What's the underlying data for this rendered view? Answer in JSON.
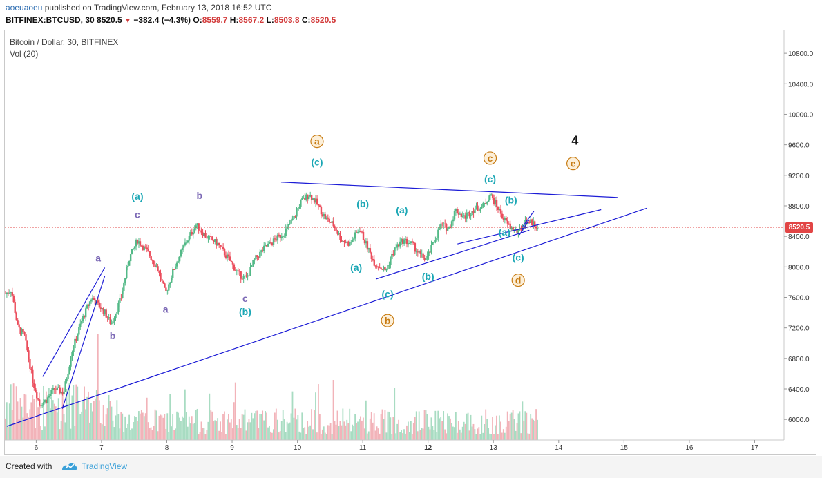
{
  "header": {
    "author": "aoeuaoeu",
    "published": " published on TradingView.com, February 13, 2018 16:52 UTC",
    "symbol": "BITFINEX:BTCUSD, 30",
    "last": "8520.5",
    "change": "−382.4 (−4.3%)",
    "open_label": "O:",
    "open": "8559.7",
    "high_label": "H:",
    "high": "8567.2",
    "low_label": "L:",
    "low": "8503.8",
    "close_label": "C:",
    "close": "8520.5"
  },
  "legend": {
    "title": "Bitcoin / Dollar, 30, BITFINEX",
    "volume": "Vol (20)"
  },
  "price_tag": "8520.5",
  "footer": {
    "created": "Created with",
    "brand": "TradingView"
  },
  "colors": {
    "up": "#53b987",
    "down": "#eb4d5c",
    "trendline": "#1c1cd6",
    "cyan": "#1ba7b5",
    "orange": "#c77b12",
    "purple": "#7b68b5",
    "price_line": "#e24545"
  },
  "chart_data": {
    "type": "candlestick",
    "x_ticks": [
      "6",
      "7",
      "8",
      "9",
      "10",
      "11",
      "12",
      "13",
      "14",
      "15",
      "16",
      "17"
    ],
    "y_ticks": [
      6000,
      6400,
      6800,
      7200,
      7600,
      8000,
      8400,
      8800,
      9200,
      9600,
      10000,
      10400,
      10800
    ],
    "y_tick_labels": [
      "6000.0",
      "6400.0",
      "6800.0",
      "7200.0",
      "7600.0",
      "8000.0",
      "8400.0",
      "8800.0",
      "9200.0",
      "9600.0",
      "10000.0",
      "10400.0",
      "10800.0"
    ],
    "ylim": [
      5730,
      11100
    ],
    "xlim": [
      5.52,
      17.45
    ],
    "last_price": 8520.5,
    "price_path": [
      [
        5.53,
        7650
      ],
      [
        5.62,
        7700
      ],
      [
        5.72,
        7200
      ],
      [
        5.82,
        7100
      ],
      [
        5.95,
        6500
      ],
      [
        6.05,
        6200
      ],
      [
        6.15,
        6250
      ],
      [
        6.28,
        6400
      ],
      [
        6.42,
        6350
      ],
      [
        6.55,
        6900
      ],
      [
        6.7,
        7300
      ],
      [
        6.85,
        7600
      ],
      [
        6.95,
        7500
      ],
      [
        7.05,
        7400
      ],
      [
        7.15,
        7250
      ],
      [
        7.3,
        7600
      ],
      [
        7.42,
        8100
      ],
      [
        7.55,
        8350
      ],
      [
        7.7,
        8200
      ],
      [
        7.85,
        8000
      ],
      [
        7.98,
        7650
      ],
      [
        8.12,
        8000
      ],
      [
        8.28,
        8300
      ],
      [
        8.45,
        8550
      ],
      [
        8.6,
        8400
      ],
      [
        8.78,
        8300
      ],
      [
        8.95,
        8100
      ],
      [
        9.1,
        7900
      ],
      [
        9.22,
        7850
      ],
      [
        9.35,
        8100
      ],
      [
        9.5,
        8250
      ],
      [
        9.65,
        8350
      ],
      [
        9.8,
        8450
      ],
      [
        9.95,
        8650
      ],
      [
        10.05,
        8850
      ],
      [
        10.18,
        8950
      ],
      [
        10.28,
        8850
      ],
      [
        10.42,
        8650
      ],
      [
        10.55,
        8550
      ],
      [
        10.68,
        8350
      ],
      [
        10.8,
        8300
      ],
      [
        10.95,
        8500
      ],
      [
        11.05,
        8300
      ],
      [
        11.18,
        8050
      ],
      [
        11.35,
        7950
      ],
      [
        11.5,
        8250
      ],
      [
        11.62,
        8350
      ],
      [
        11.75,
        8300
      ],
      [
        11.88,
        8150
      ],
      [
        11.98,
        8100
      ],
      [
        12.1,
        8350
      ],
      [
        12.2,
        8550
      ],
      [
        12.32,
        8500
      ],
      [
        12.42,
        8750
      ],
      [
        12.55,
        8650
      ],
      [
        12.7,
        8750
      ],
      [
        12.85,
        8800
      ],
      [
        12.95,
        8950
      ],
      [
        13.05,
        8800
      ],
      [
        13.18,
        8600
      ],
      [
        13.28,
        8500
      ],
      [
        13.38,
        8450
      ],
      [
        13.5,
        8600
      ],
      [
        13.6,
        8580
      ],
      [
        13.68,
        8520
      ]
    ],
    "trendlines": [
      {
        "from": [
          5.55,
          5910
        ],
        "to": [
          15.35,
          8770
        ]
      },
      {
        "from": [
          12.45,
          8300
        ],
        "to": [
          14.65,
          8750
        ]
      },
      {
        "from": [
          9.75,
          9110
        ],
        "to": [
          14.9,
          8910
        ]
      },
      {
        "from": [
          11.2,
          7840
        ],
        "to": [
          13.55,
          8480
        ]
      },
      {
        "from": [
          6.1,
          6560
        ],
        "to": [
          7.05,
          7990
        ]
      },
      {
        "from": [
          6.4,
          6140
        ],
        "to": [
          7.05,
          7880
        ]
      },
      {
        "from": [
          13.45,
          8530
        ],
        "to": [
          13.62,
          8730
        ]
      },
      {
        "from": [
          13.4,
          8420
        ],
        "to": [
          13.55,
          8620
        ]
      }
    ],
    "wave_labels": [
      {
        "text": "a",
        "x": 6.95,
        "y": 8070,
        "color": "purple",
        "circle": false
      },
      {
        "text": "b",
        "x": 7.17,
        "y": 7050,
        "color": "purple",
        "circle": false
      },
      {
        "text": "(a)",
        "x": 7.55,
        "y": 8880,
        "color": "cyan",
        "circle": false
      },
      {
        "text": "c",
        "x": 7.55,
        "y": 8640,
        "color": "purple",
        "circle": false
      },
      {
        "text": "a",
        "x": 7.98,
        "y": 7400,
        "color": "purple",
        "circle": false
      },
      {
        "text": "b",
        "x": 8.5,
        "y": 8890,
        "color": "purple",
        "circle": false
      },
      {
        "text": "c",
        "x": 9.2,
        "y": 7540,
        "color": "purple",
        "circle": false
      },
      {
        "text": "(b)",
        "x": 9.2,
        "y": 7370,
        "color": "cyan",
        "circle": false
      },
      {
        "text": "a",
        "x": 10.3,
        "y": 9600,
        "color": "orange",
        "circle": true
      },
      {
        "text": "(c)",
        "x": 10.3,
        "y": 9330,
        "color": "cyan",
        "circle": false
      },
      {
        "text": "(b)",
        "x": 11.0,
        "y": 8780,
        "color": "cyan",
        "circle": false
      },
      {
        "text": "(a)",
        "x": 10.9,
        "y": 7950,
        "color": "cyan",
        "circle": false
      },
      {
        "text": "(a)",
        "x": 11.6,
        "y": 8700,
        "color": "cyan",
        "circle": false
      },
      {
        "text": "(c)",
        "x": 11.38,
        "y": 7600,
        "color": "cyan",
        "circle": false
      },
      {
        "text": "b",
        "x": 11.38,
        "y": 7250,
        "color": "orange",
        "circle": true
      },
      {
        "text": "(b)",
        "x": 12.0,
        "y": 7830,
        "color": "cyan",
        "circle": false
      },
      {
        "text": "c",
        "x": 12.95,
        "y": 9380,
        "color": "orange",
        "circle": true
      },
      {
        "text": "(c)",
        "x": 12.95,
        "y": 9110,
        "color": "cyan",
        "circle": false
      },
      {
        "text": "(b)",
        "x": 13.27,
        "y": 8830,
        "color": "cyan",
        "circle": false
      },
      {
        "text": "(a)",
        "x": 13.17,
        "y": 8410,
        "color": "cyan",
        "circle": false
      },
      {
        "text": "(c)",
        "x": 13.38,
        "y": 8080,
        "color": "cyan",
        "circle": false
      },
      {
        "text": "d",
        "x": 13.38,
        "y": 7780,
        "color": "orange",
        "circle": true
      },
      {
        "text": "e",
        "x": 14.22,
        "y": 9310,
        "color": "orange",
        "circle": true
      },
      {
        "text": "4",
        "x": 14.25,
        "y": 9600,
        "color": "black",
        "circle": false
      }
    ],
    "grid": false,
    "volume_panel": true
  }
}
